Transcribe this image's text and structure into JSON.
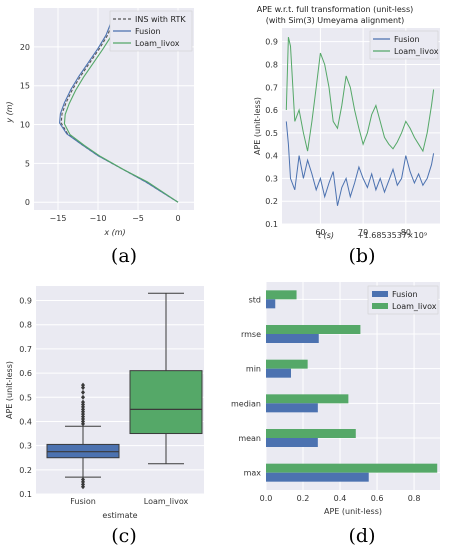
{
  "colors": {
    "fusion": "#4c72b0",
    "loam": "#55a868",
    "rtk": "#555555",
    "panel_bg": "#eaeaf2",
    "grid": "#ffffff"
  },
  "chart_data": [
    {
      "type": "line",
      "label": "(a)",
      "xlabel": "x (m)",
      "ylabel": "y (m)",
      "xlim": [
        -18,
        2
      ],
      "ylim": [
        -1,
        25
      ],
      "xticks": [
        "−15",
        "−10",
        "−5",
        "0"
      ],
      "yticks": [
        "0",
        "5",
        "10",
        "15",
        "20"
      ],
      "legend": "top-right",
      "grid": true,
      "series": [
        {
          "name": "INS with RTK",
          "style": "dashed",
          "x": [
            0,
            -2,
            -4,
            -7,
            -10,
            -12,
            -13.8,
            -14.6,
            -14.5,
            -14,
            -13.2,
            -12.2,
            -11,
            -9.8,
            -8.8,
            -8.3,
            -7.9
          ],
          "y": [
            0,
            1.3,
            2.6,
            4.3,
            6,
            7.4,
            8.8,
            10.2,
            11.4,
            12.8,
            14.5,
            16.2,
            18,
            19.8,
            21.5,
            22.8,
            24
          ]
        },
        {
          "name": "Fusion",
          "x": [
            0,
            -2,
            -4,
            -7,
            -10,
            -12,
            -13.9,
            -14.8,
            -14.7,
            -14.2,
            -13.4,
            -12.4,
            -11.2,
            -10,
            -9,
            -8.5,
            -8.1
          ],
          "y": [
            0,
            1.3,
            2.6,
            4.3,
            6,
            7.4,
            8.8,
            10.2,
            11.4,
            12.8,
            14.5,
            16.2,
            18,
            19.8,
            21.5,
            22.8,
            23.9
          ]
        },
        {
          "name": "Loam_livox",
          "x": [
            0,
            -1.9,
            -3.8,
            -6.8,
            -9.7,
            -11.7,
            -13.5,
            -14.2,
            -14.1,
            -13.6,
            -12.8,
            -11.8,
            -10.6,
            -9.4,
            -8.4,
            -7.9,
            -7.5
          ],
          "y": [
            0,
            1.3,
            2.6,
            4.2,
            5.9,
            7.3,
            8.7,
            10.1,
            11.3,
            12.7,
            14.4,
            16.1,
            17.9,
            19.7,
            21.3,
            22.6,
            23.6
          ]
        }
      ]
    },
    {
      "type": "line",
      "label": "(b)",
      "title": "APE w.r.t. full transformation (unit-less)",
      "subtitle": "(with Sim(3) Umeyama alignment)",
      "xlabel": "t (s)",
      "offset_label": "+1.6853537×10⁹",
      "ylabel": "APE (unit-less)",
      "xlim": [
        51,
        88
      ],
      "ylim": [
        0.1,
        0.96
      ],
      "xticks": [
        "60",
        "70",
        "80"
      ],
      "yticks": [
        "0.1",
        "0.2",
        "0.3",
        "0.4",
        "0.5",
        "0.6",
        "0.7",
        "0.8",
        "0.9"
      ],
      "legend": "top-right",
      "grid": true,
      "series": [
        {
          "name": "Fusion",
          "x": [
            52,
            52.5,
            53,
            54,
            55,
            56,
            57,
            58,
            59,
            60,
            61,
            62,
            63,
            64,
            65,
            66,
            67,
            68,
            69,
            70,
            71,
            72,
            73,
            74,
            75,
            76,
            77,
            78,
            79,
            80,
            81,
            82,
            83,
            84,
            85,
            86,
            86.5
          ],
          "y": [
            0.55,
            0.45,
            0.3,
            0.25,
            0.4,
            0.3,
            0.38,
            0.32,
            0.25,
            0.3,
            0.22,
            0.28,
            0.33,
            0.18,
            0.26,
            0.3,
            0.22,
            0.28,
            0.35,
            0.3,
            0.26,
            0.32,
            0.25,
            0.3,
            0.24,
            0.29,
            0.34,
            0.27,
            0.3,
            0.4,
            0.33,
            0.28,
            0.32,
            0.27,
            0.3,
            0.36,
            0.41
          ]
        },
        {
          "name": "Loam_livox",
          "x": [
            52,
            52.5,
            53,
            54,
            55,
            56,
            57,
            58,
            59,
            60,
            61,
            62,
            63,
            64,
            65,
            66,
            67,
            68,
            69,
            70,
            71,
            72,
            73,
            74,
            75,
            76,
            77,
            78,
            79,
            80,
            81,
            82,
            83,
            84,
            85,
            86,
            86.5
          ],
          "y": [
            0.6,
            0.92,
            0.88,
            0.55,
            0.6,
            0.5,
            0.42,
            0.55,
            0.7,
            0.85,
            0.8,
            0.7,
            0.55,
            0.52,
            0.62,
            0.75,
            0.7,
            0.6,
            0.52,
            0.45,
            0.5,
            0.58,
            0.62,
            0.55,
            0.48,
            0.45,
            0.43,
            0.46,
            0.5,
            0.55,
            0.52,
            0.48,
            0.45,
            0.42,
            0.5,
            0.62,
            0.69
          ]
        }
      ]
    },
    {
      "type": "box",
      "label": "(c)",
      "xlabel": "estimate",
      "ylabel": "APE (unit-less)",
      "ylim": [
        0.1,
        0.96
      ],
      "yticks": [
        "0.1",
        "0.2",
        "0.3",
        "0.4",
        "0.5",
        "0.6",
        "0.7",
        "0.8",
        "0.9"
      ],
      "grid": true,
      "categories": [
        "Fusion",
        "Loam_livox"
      ],
      "boxes": [
        {
          "name": "Fusion",
          "min": 0.17,
          "q1": 0.25,
          "median": 0.275,
          "q3": 0.305,
          "max": 0.38,
          "outliers": [
            0.39,
            0.4,
            0.41,
            0.42,
            0.43,
            0.44,
            0.45,
            0.46,
            0.47,
            0.48,
            0.5,
            0.52,
            0.54,
            0.55,
            0.16,
            0.15,
            0.14,
            0.13
          ]
        },
        {
          "name": "Loam_livox",
          "min": 0.225,
          "q1": 0.35,
          "median": 0.45,
          "q3": 0.61,
          "max": 0.93,
          "outliers": []
        }
      ]
    },
    {
      "type": "bar",
      "orientation": "horizontal",
      "label": "(d)",
      "xlabel": "APE (unit-less)",
      "xlim": [
        0,
        0.94
      ],
      "xticks": [
        "0.0",
        "0.2",
        "0.4",
        "0.6",
        "0.8"
      ],
      "legend": "top-right",
      "grid": true,
      "categories": [
        "std",
        "rmse",
        "min",
        "median",
        "mean",
        "max"
      ],
      "series": [
        {
          "name": "Fusion",
          "values": [
            0.05,
            0.285,
            0.135,
            0.28,
            0.28,
            0.555
          ]
        },
        {
          "name": "Loam_livox",
          "values": [
            0.165,
            0.51,
            0.225,
            0.445,
            0.485,
            0.925
          ]
        }
      ]
    }
  ]
}
